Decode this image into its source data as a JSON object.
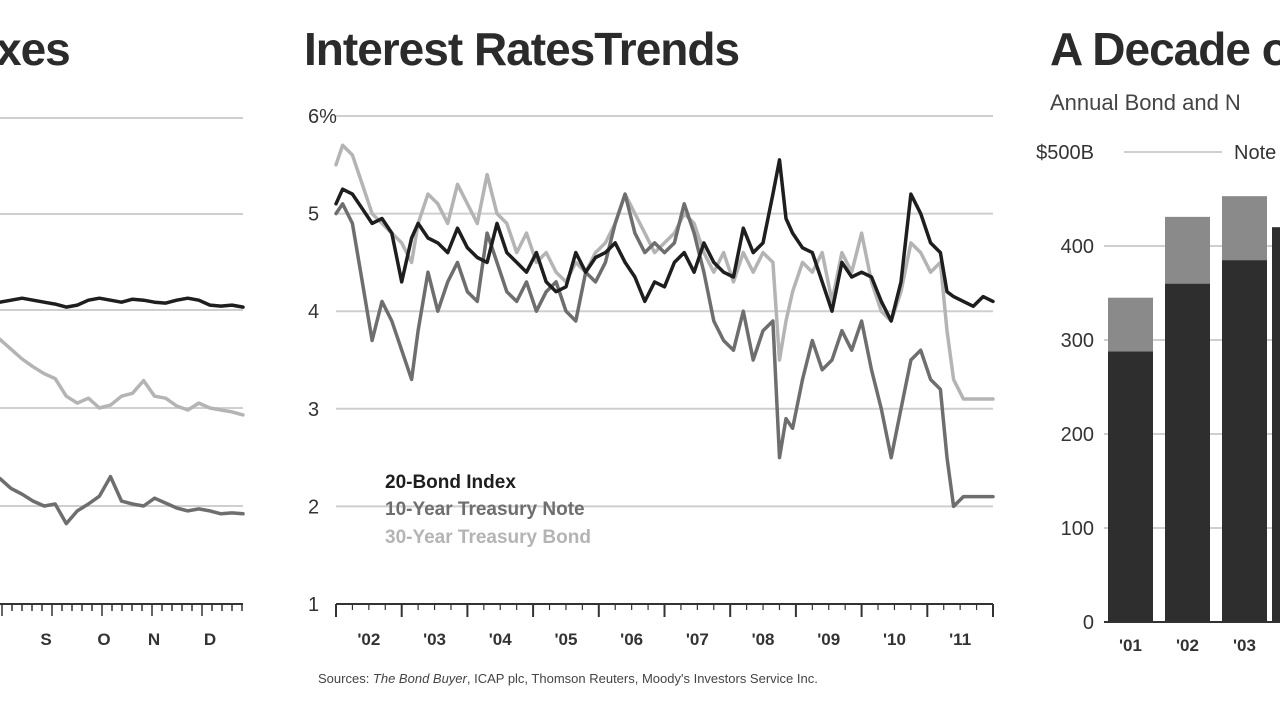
{
  "colors": {
    "bond_index": "#1e1e1e",
    "treasury_10y": "#6e6e6e",
    "treasury_30y": "#b4b4b4",
    "grid": "#cfcfcf",
    "bar_dark": "#2e2e2e",
    "bar_light": "#8a8a8a"
  },
  "left_panel": {
    "title_fragment": "xes",
    "month_labels": [
      "S",
      "O",
      "N",
      "D"
    ]
  },
  "middle_panel": {
    "title": "Interest RatesTrends",
    "source_prefix": "Sources: ",
    "source_italic": "The Bond Buyer",
    "source_rest": ", ICAP plc, Thomson Reuters, Moody's Investors Service Inc."
  },
  "right_panel": {
    "title_fragment": "A Decade o",
    "subtitle_fragment": "Annual Bond and N",
    "legend_fragment": "Note"
  },
  "chart_data": [
    {
      "type": "line",
      "title": "",
      "x_tick_labels": [
        "S",
        "O",
        "N",
        "D"
      ],
      "series": [
        {
          "values": [
            4.08,
            4.1,
            4.12,
            4.1,
            4.08,
            4.06,
            4.03,
            4.05,
            4.1,
            4.12,
            4.1,
            4.08,
            4.11,
            4.1,
            4.08,
            4.07,
            4.1,
            4.12,
            4.1,
            4.05,
            4.04,
            4.05,
            4.03
          ]
        },
        {
          "values": [
            3.7,
            3.6,
            3.5,
            3.42,
            3.35,
            3.3,
            3.12,
            3.05,
            3.1,
            3.0,
            3.03,
            3.12,
            3.15,
            3.28,
            3.12,
            3.1,
            3.02,
            2.98,
            3.05,
            3.0,
            2.98,
            2.96,
            2.93
          ]
        },
        {
          "values": [
            2.28,
            2.18,
            2.12,
            2.05,
            2.0,
            2.02,
            1.82,
            1.95,
            2.02,
            2.1,
            2.3,
            2.05,
            2.02,
            2.0,
            2.08,
            2.03,
            1.98,
            1.95,
            1.97,
            1.95,
            1.92,
            1.93,
            1.92
          ]
        }
      ]
    },
    {
      "type": "line",
      "title": "Interest RatesTrends",
      "x_tick_labels": [
        "'02",
        "'03",
        "'04",
        "'05",
        "'06",
        "'07",
        "'08",
        "'09",
        "'10",
        "'11"
      ],
      "xlim": [
        2001.75,
        2011.75
      ],
      "y_tick_labels": [
        "6%",
        "5",
        "4",
        "3",
        "2",
        "1"
      ],
      "ylim": [
        1,
        6
      ],
      "grid": true,
      "legend_position": "lower-left",
      "series": [
        {
          "name": "20-Bond Index",
          "x": [
            2001.75,
            2001.85,
            2002.0,
            2002.15,
            2002.3,
            2002.45,
            2002.6,
            2002.75,
            2002.9,
            2003.0,
            2003.15,
            2003.3,
            2003.45,
            2003.6,
            2003.75,
            2003.9,
            2004.05,
            2004.2,
            2004.35,
            2004.5,
            2004.65,
            2004.8,
            2004.95,
            2005.1,
            2005.25,
            2005.4,
            2005.55,
            2005.7,
            2005.85,
            2006.0,
            2006.15,
            2006.3,
            2006.45,
            2006.6,
            2006.75,
            2006.9,
            2007.05,
            2007.2,
            2007.35,
            2007.5,
            2007.65,
            2007.8,
            2007.95,
            2008.1,
            2008.25,
            2008.4,
            2008.5,
            2008.6,
            2008.7,
            2008.85,
            2009.0,
            2009.15,
            2009.3,
            2009.45,
            2009.6,
            2009.75,
            2009.9,
            2010.05,
            2010.2,
            2010.35,
            2010.5,
            2010.65,
            2010.8,
            2010.95,
            2011.05,
            2011.15,
            2011.3,
            2011.45,
            2011.6,
            2011.75
          ],
          "values": [
            5.1,
            5.25,
            5.2,
            5.05,
            4.9,
            4.95,
            4.8,
            4.3,
            4.75,
            4.9,
            4.75,
            4.7,
            4.6,
            4.85,
            4.65,
            4.55,
            4.5,
            4.9,
            4.6,
            4.5,
            4.4,
            4.6,
            4.3,
            4.2,
            4.25,
            4.6,
            4.4,
            4.55,
            4.6,
            4.7,
            4.5,
            4.35,
            4.1,
            4.3,
            4.25,
            4.5,
            4.6,
            4.4,
            4.7,
            4.5,
            4.4,
            4.35,
            4.85,
            4.6,
            4.7,
            5.2,
            5.55,
            4.95,
            4.8,
            4.65,
            4.6,
            4.3,
            4.0,
            4.5,
            4.35,
            4.4,
            4.35,
            4.1,
            3.9,
            4.3,
            5.2,
            5.0,
            4.7,
            4.6,
            4.2,
            4.15,
            4.1,
            4.05,
            4.15,
            4.1
          ]
        },
        {
          "name": "10-Year Treasury Note",
          "x": [
            2001.75,
            2001.85,
            2002.0,
            2002.15,
            2002.3,
            2002.45,
            2002.6,
            2002.75,
            2002.9,
            2003.0,
            2003.15,
            2003.3,
            2003.45,
            2003.6,
            2003.75,
            2003.9,
            2004.05,
            2004.2,
            2004.35,
            2004.5,
            2004.65,
            2004.8,
            2004.95,
            2005.1,
            2005.25,
            2005.4,
            2005.55,
            2005.7,
            2005.85,
            2006.0,
            2006.15,
            2006.3,
            2006.45,
            2006.6,
            2006.75,
            2006.9,
            2007.05,
            2007.2,
            2007.35,
            2007.5,
            2007.65,
            2007.8,
            2007.95,
            2008.1,
            2008.25,
            2008.4,
            2008.5,
            2008.6,
            2008.7,
            2008.85,
            2009.0,
            2009.15,
            2009.3,
            2009.45,
            2009.6,
            2009.75,
            2009.9,
            2010.05,
            2010.2,
            2010.35,
            2010.5,
            2010.65,
            2010.8,
            2010.95,
            2011.05,
            2011.15,
            2011.3,
            2011.45,
            2011.6,
            2011.75
          ],
          "values": [
            5.0,
            5.1,
            4.9,
            4.3,
            3.7,
            4.1,
            3.9,
            3.6,
            3.3,
            3.8,
            4.4,
            4.0,
            4.3,
            4.5,
            4.2,
            4.1,
            4.8,
            4.5,
            4.2,
            4.1,
            4.3,
            4.0,
            4.2,
            4.3,
            4.0,
            3.9,
            4.4,
            4.3,
            4.5,
            4.9,
            5.2,
            4.8,
            4.6,
            4.7,
            4.6,
            4.7,
            5.1,
            4.8,
            4.4,
            3.9,
            3.7,
            3.6,
            4.0,
            3.5,
            3.8,
            3.9,
            2.5,
            2.9,
            2.8,
            3.3,
            3.7,
            3.4,
            3.5,
            3.8,
            3.6,
            3.9,
            3.4,
            3.0,
            2.5,
            3.0,
            3.5,
            3.6,
            3.3,
            3.2,
            2.5,
            2.0,
            2.1,
            2.1,
            2.1,
            2.1
          ]
        },
        {
          "name": "30-Year Treasury Bond",
          "x": [
            2001.75,
            2001.85,
            2002.0,
            2002.15,
            2002.3,
            2002.45,
            2002.6,
            2002.75,
            2002.9,
            2003.0,
            2003.15,
            2003.3,
            2003.45,
            2003.6,
            2003.75,
            2003.9,
            2004.05,
            2004.2,
            2004.35,
            2004.5,
            2004.65,
            2004.8,
            2004.95,
            2005.1,
            2005.25,
            2005.4,
            2005.55,
            2005.7,
            2005.85,
            2006.0,
            2006.15,
            2006.3,
            2006.45,
            2006.6,
            2006.75,
            2006.9,
            2007.05,
            2007.2,
            2007.35,
            2007.5,
            2007.65,
            2007.8,
            2007.95,
            2008.1,
            2008.25,
            2008.4,
            2008.5,
            2008.6,
            2008.7,
            2008.85,
            2009.0,
            2009.15,
            2009.3,
            2009.45,
            2009.6,
            2009.75,
            2009.9,
            2010.05,
            2010.2,
            2010.35,
            2010.5,
            2010.65,
            2010.8,
            2010.95,
            2011.05,
            2011.15,
            2011.3,
            2011.45,
            2011.6,
            2011.75
          ],
          "values": [
            5.5,
            5.7,
            5.6,
            5.3,
            5.0,
            4.9,
            4.8,
            4.7,
            4.5,
            4.9,
            5.2,
            5.1,
            4.9,
            5.3,
            5.1,
            4.9,
            5.4,
            5.0,
            4.9,
            4.6,
            4.8,
            4.5,
            4.6,
            4.4,
            4.3,
            4.5,
            4.4,
            4.6,
            4.7,
            4.9,
            5.2,
            5.0,
            4.8,
            4.6,
            4.7,
            4.8,
            5.0,
            4.9,
            4.6,
            4.4,
            4.6,
            4.3,
            4.6,
            4.4,
            4.6,
            4.5,
            3.5,
            3.9,
            4.2,
            4.5,
            4.4,
            4.6,
            4.1,
            4.6,
            4.4,
            4.8,
            4.3,
            4.0,
            3.9,
            4.2,
            4.7,
            4.6,
            4.4,
            4.5,
            3.8,
            3.3,
            3.1,
            3.1,
            3.1,
            3.1
          ]
        }
      ],
      "annotations": [
        "Sources: The Bond Buyer, ICAP plc, Thomson Reuters, Moody's Investors Service Inc."
      ]
    },
    {
      "type": "bar",
      "title": "A Decade o",
      "subtitle": "Annual Bond and N",
      "categories": [
        "'01",
        "'02",
        "'03"
      ],
      "y_tick_labels": [
        "$500B",
        "400",
        "300",
        "200",
        "100",
        "0"
      ],
      "ylim": [
        0,
        500
      ],
      "grid": true,
      "series": [
        {
          "values": [
            288,
            360,
            385
          ]
        },
        {
          "name": "Note",
          "values": [
            57,
            71,
            68
          ]
        }
      ]
    }
  ]
}
